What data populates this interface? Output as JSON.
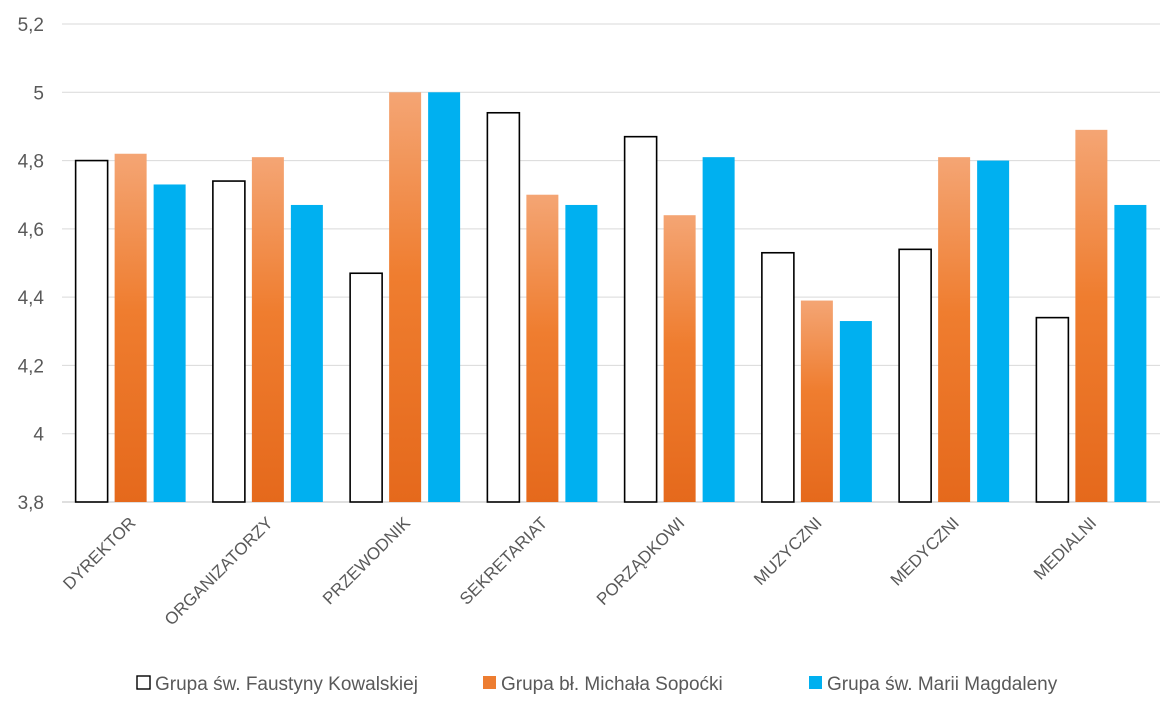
{
  "chart_data": {
    "type": "bar",
    "title": "",
    "xlabel": "",
    "ylabel": "",
    "ylim": [
      3.8,
      5.2
    ],
    "yticks": [
      "3,8",
      "4",
      "4,2",
      "4,4",
      "4,6",
      "4,8",
      "5",
      "5,2"
    ],
    "grid": true,
    "legend_position": "bottom",
    "categories": [
      "DYREKTOR",
      "ORGANIZATORZY",
      "PRZEWODNIK",
      "SEKRETARIAT",
      "PORZĄDKOWI",
      "MUZYCZNI",
      "MEDYCZNI",
      "MEDIALNI"
    ],
    "series": [
      {
        "name": "Grupa św. Faustyny Kowalskiej",
        "color": "#ffffff",
        "stroke": "#000000",
        "values": [
          4.8,
          4.74,
          4.47,
          4.94,
          4.87,
          4.53,
          4.54,
          4.34
        ]
      },
      {
        "name": "Grupa bł. Michała Sopoćki",
        "color": "#ed7d31",
        "values": [
          4.82,
          4.81,
          5.0,
          4.7,
          4.64,
          4.39,
          4.81,
          4.89
        ]
      },
      {
        "name": "Grupa św. Marii Magdaleny",
        "color": "#00b0f0",
        "values": [
          4.73,
          4.67,
          5.0,
          4.67,
          4.81,
          4.33,
          4.8,
          4.67
        ]
      }
    ]
  }
}
